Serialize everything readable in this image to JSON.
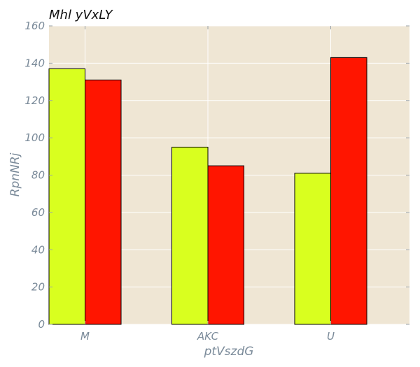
{
  "chart_data": {
    "type": "bar",
    "title": "Mhl yVxLY",
    "xlabel": "ptVszdG",
    "ylabel": "RpnNRj",
    "categories": [
      "M",
      "AKC",
      "U"
    ],
    "series": [
      {
        "values": [
          137,
          95,
          81
        ],
        "color": "#d9ff1f"
      },
      {
        "values": [
          131,
          85,
          143
        ],
        "color": "#ff1500"
      }
    ],
    "ylim": [
      0,
      160
    ],
    "yticks": [
      "0",
      "20",
      "40",
      "60",
      "80",
      "100",
      "120",
      "140",
      "160"
    ],
    "grid": true,
    "plot_background": "#efe6d4",
    "legend": "none"
  }
}
